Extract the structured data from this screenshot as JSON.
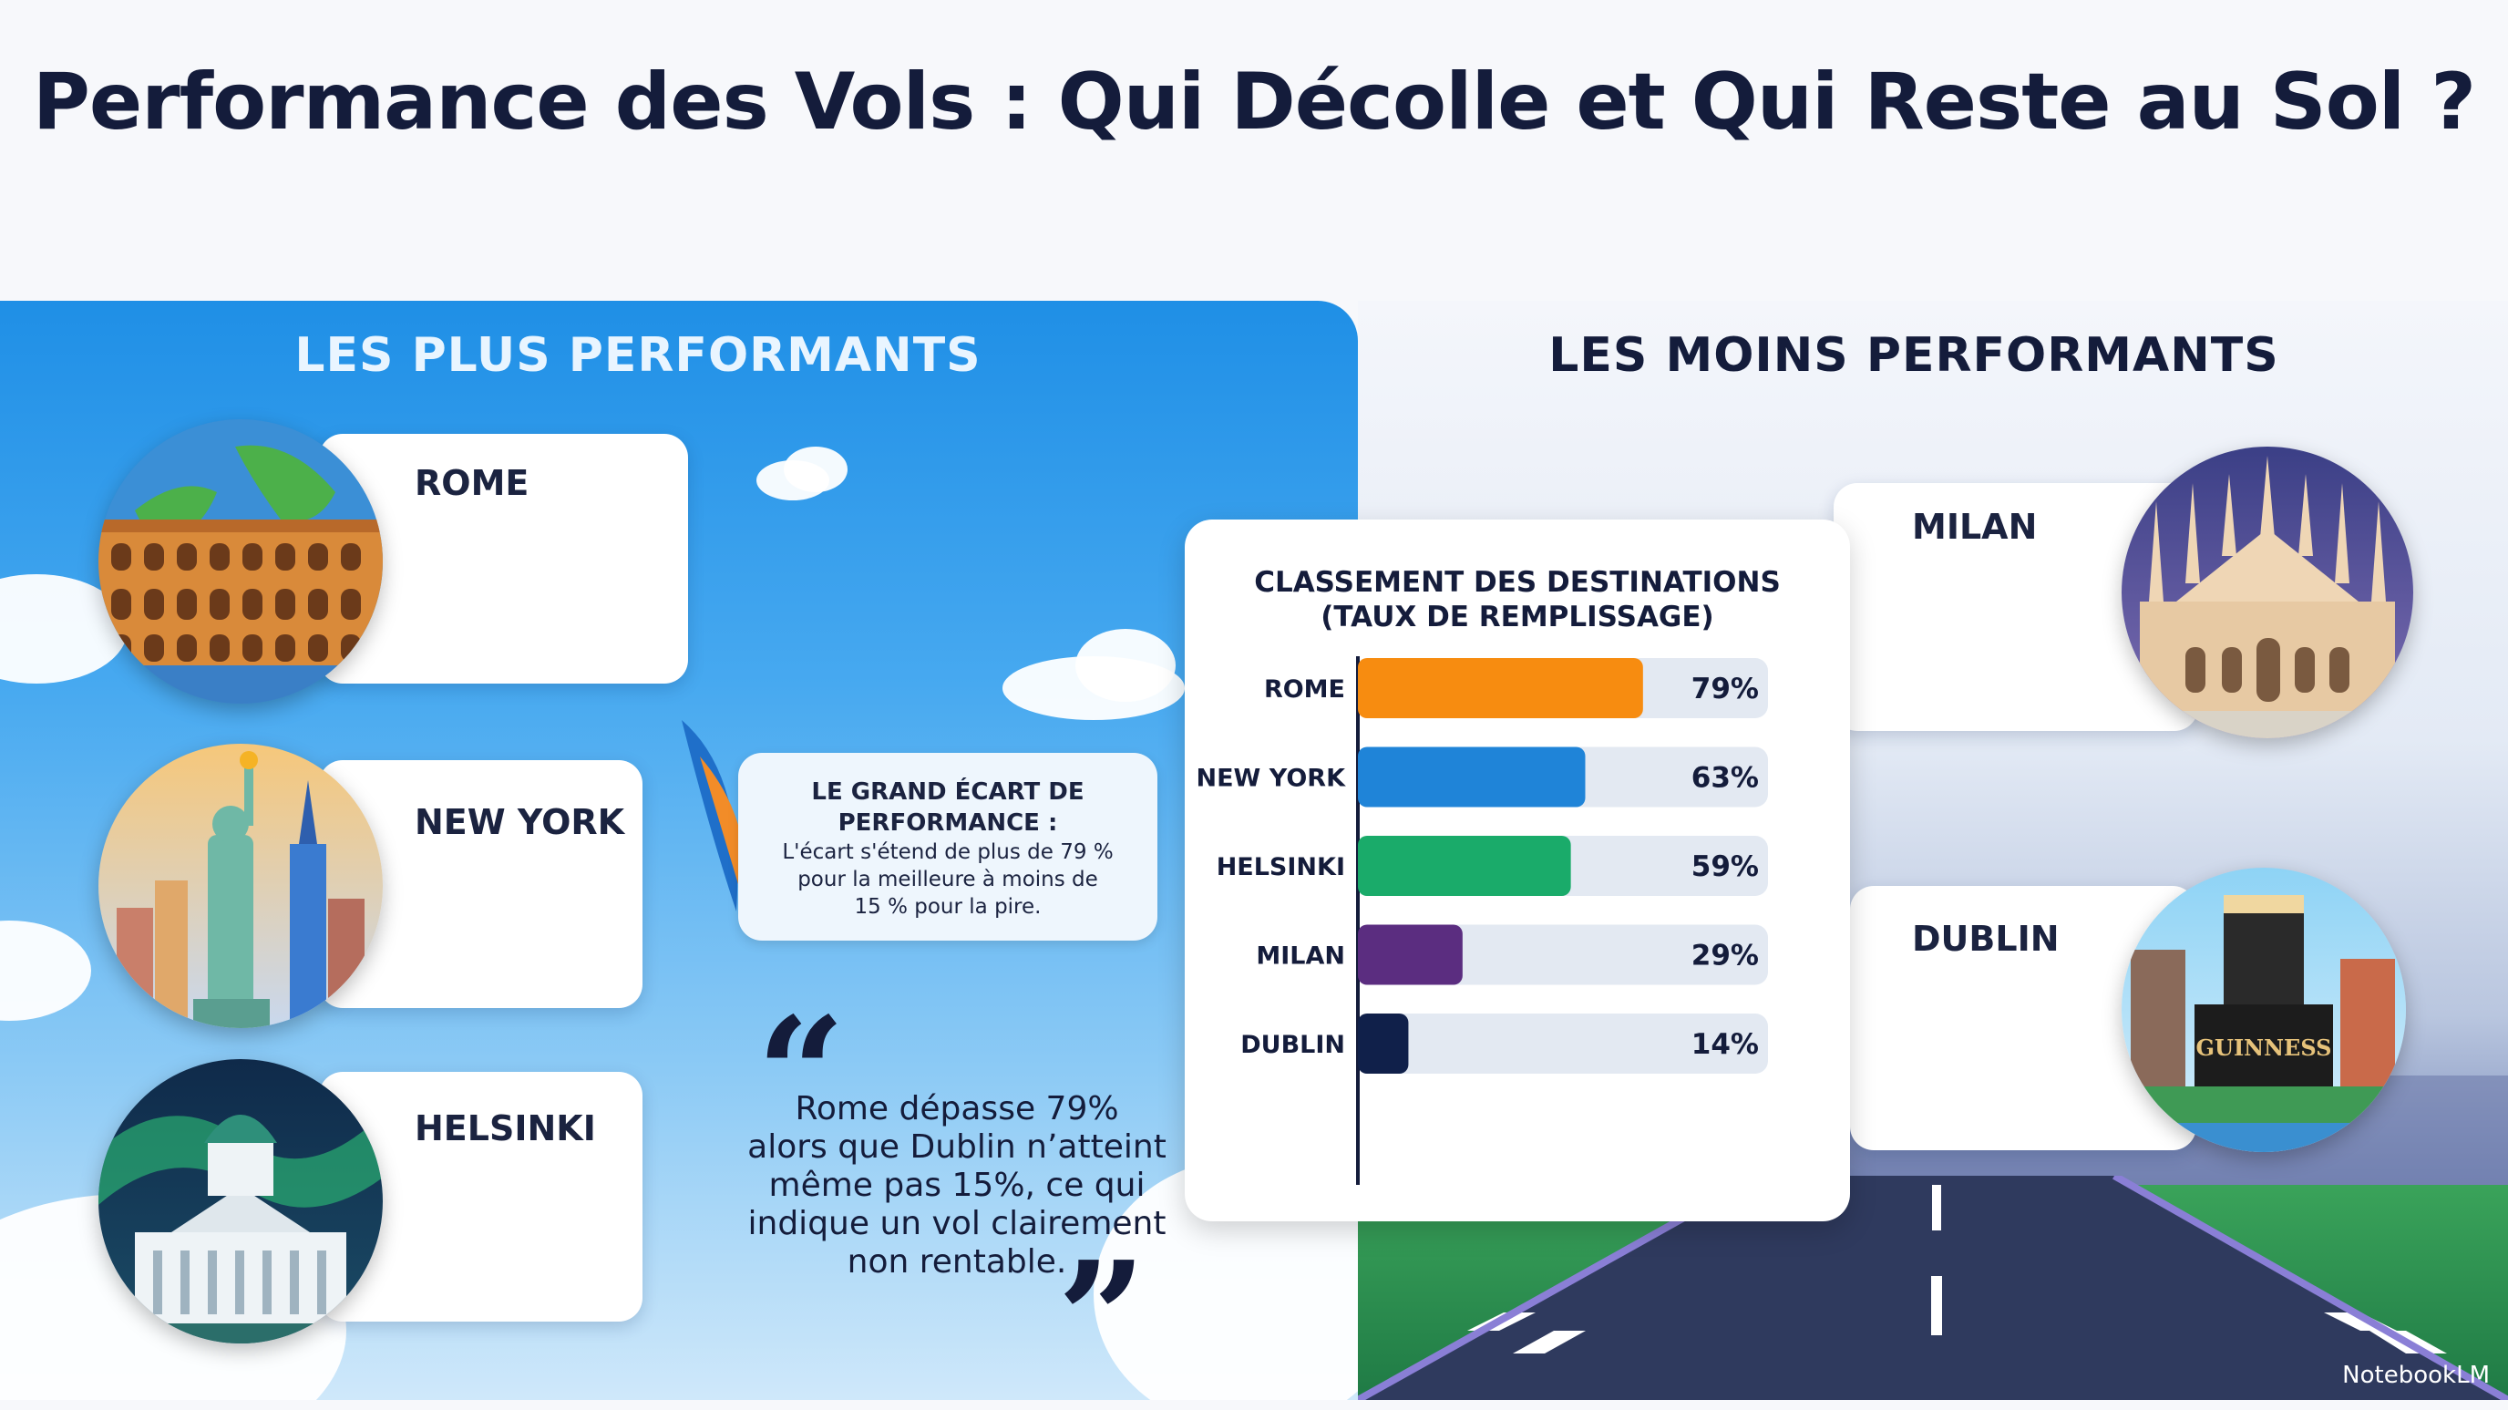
{
  "title": "Performance des Vols : Qui Décolle et Qui Reste au Sol ?",
  "best": {
    "heading": "LES PLUS PERFORMANTS",
    "cities": [
      "ROME",
      "NEW YORK",
      "HELSINKI"
    ]
  },
  "worst": {
    "heading": "LES MOINS PERFORMANTS",
    "cities": [
      "MILAN",
      "DUBLIN"
    ],
    "guinness_sign": "GUINNESS"
  },
  "gap": {
    "title_line1": "LE GRAND ÉCART DE",
    "title_line2": "PERFORMANCE :",
    "text_line1": "L'écart s'étend de plus de 79 %",
    "text_line2": "pour la meilleure à moins de",
    "text_line3": "15 % pour la pire."
  },
  "quote": {
    "open": "“",
    "close": "”",
    "line1": "Rome dépasse 79%",
    "line2": "alors que Dublin n’atteint",
    "line3": "même pas 15%, ce qui",
    "line4": "indique un vol clairement",
    "line5": "non rentable."
  },
  "brand": "NotebookLM",
  "colors": {
    "rome": "#f78c10",
    "newyork": "#1f84d8",
    "helsinki": "#1aab6a",
    "milan": "#5b2d80",
    "dublin": "#10204a",
    "track": "#e3e9f2"
  },
  "chart_data": {
    "type": "bar",
    "orientation": "horizontal",
    "title_line1": "CLASSEMENT DES DESTINATIONS",
    "title_line2": "(TAUX DE REMPLISSAGE)",
    "categories": [
      "ROME",
      "NEW YORK",
      "HELSINKI",
      "MILAN",
      "DUBLIN"
    ],
    "values": [
      79,
      63,
      59,
      29,
      14
    ],
    "value_labels": [
      "79%",
      "63%",
      "59%",
      "29%",
      "14%"
    ],
    "xlim": [
      0,
      100
    ],
    "grid": false,
    "legend": "none"
  }
}
